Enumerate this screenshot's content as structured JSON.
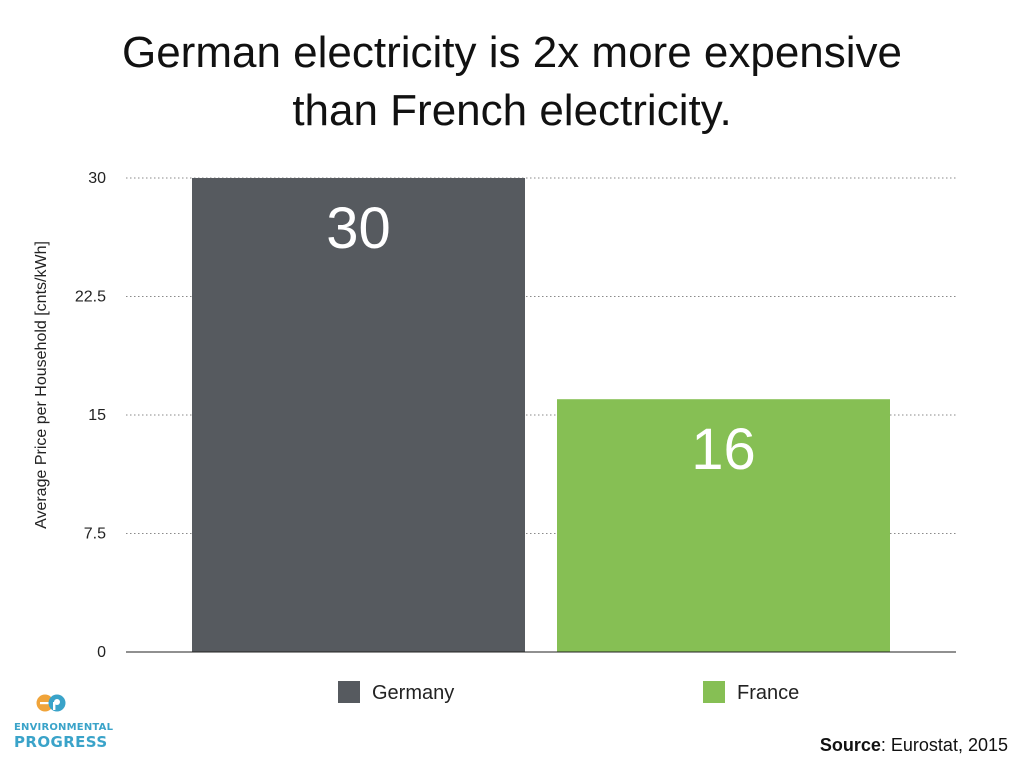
{
  "chart_data": {
    "type": "bar",
    "title": [
      "German electricity is 2x more expensive",
      "than French electricity."
    ],
    "categories": [
      "Germany",
      "France"
    ],
    "values": [
      30,
      16
    ],
    "data_labels": [
      "30",
      "16"
    ],
    "ylabel": "Average Price per Household [cnts/kWh]",
    "xlabel": "",
    "ylim": [
      0,
      30
    ],
    "yticks": [
      0,
      7.5,
      15,
      22.5,
      30
    ],
    "ytick_labels": [
      "0",
      "7.5",
      "15",
      "22.5",
      "30"
    ],
    "grid": true,
    "legend": "bottom",
    "colors": [
      "#565a5f",
      "#86bf54"
    ]
  },
  "logo": {
    "line1": "ENVIRONMENTAL",
    "line2": "PROGRESS",
    "colors": {
      "orange": "#f0a43a",
      "blue": "#3aa3c9"
    }
  },
  "source": {
    "label": "Source",
    "text": ": Eurostat, 2015"
  }
}
